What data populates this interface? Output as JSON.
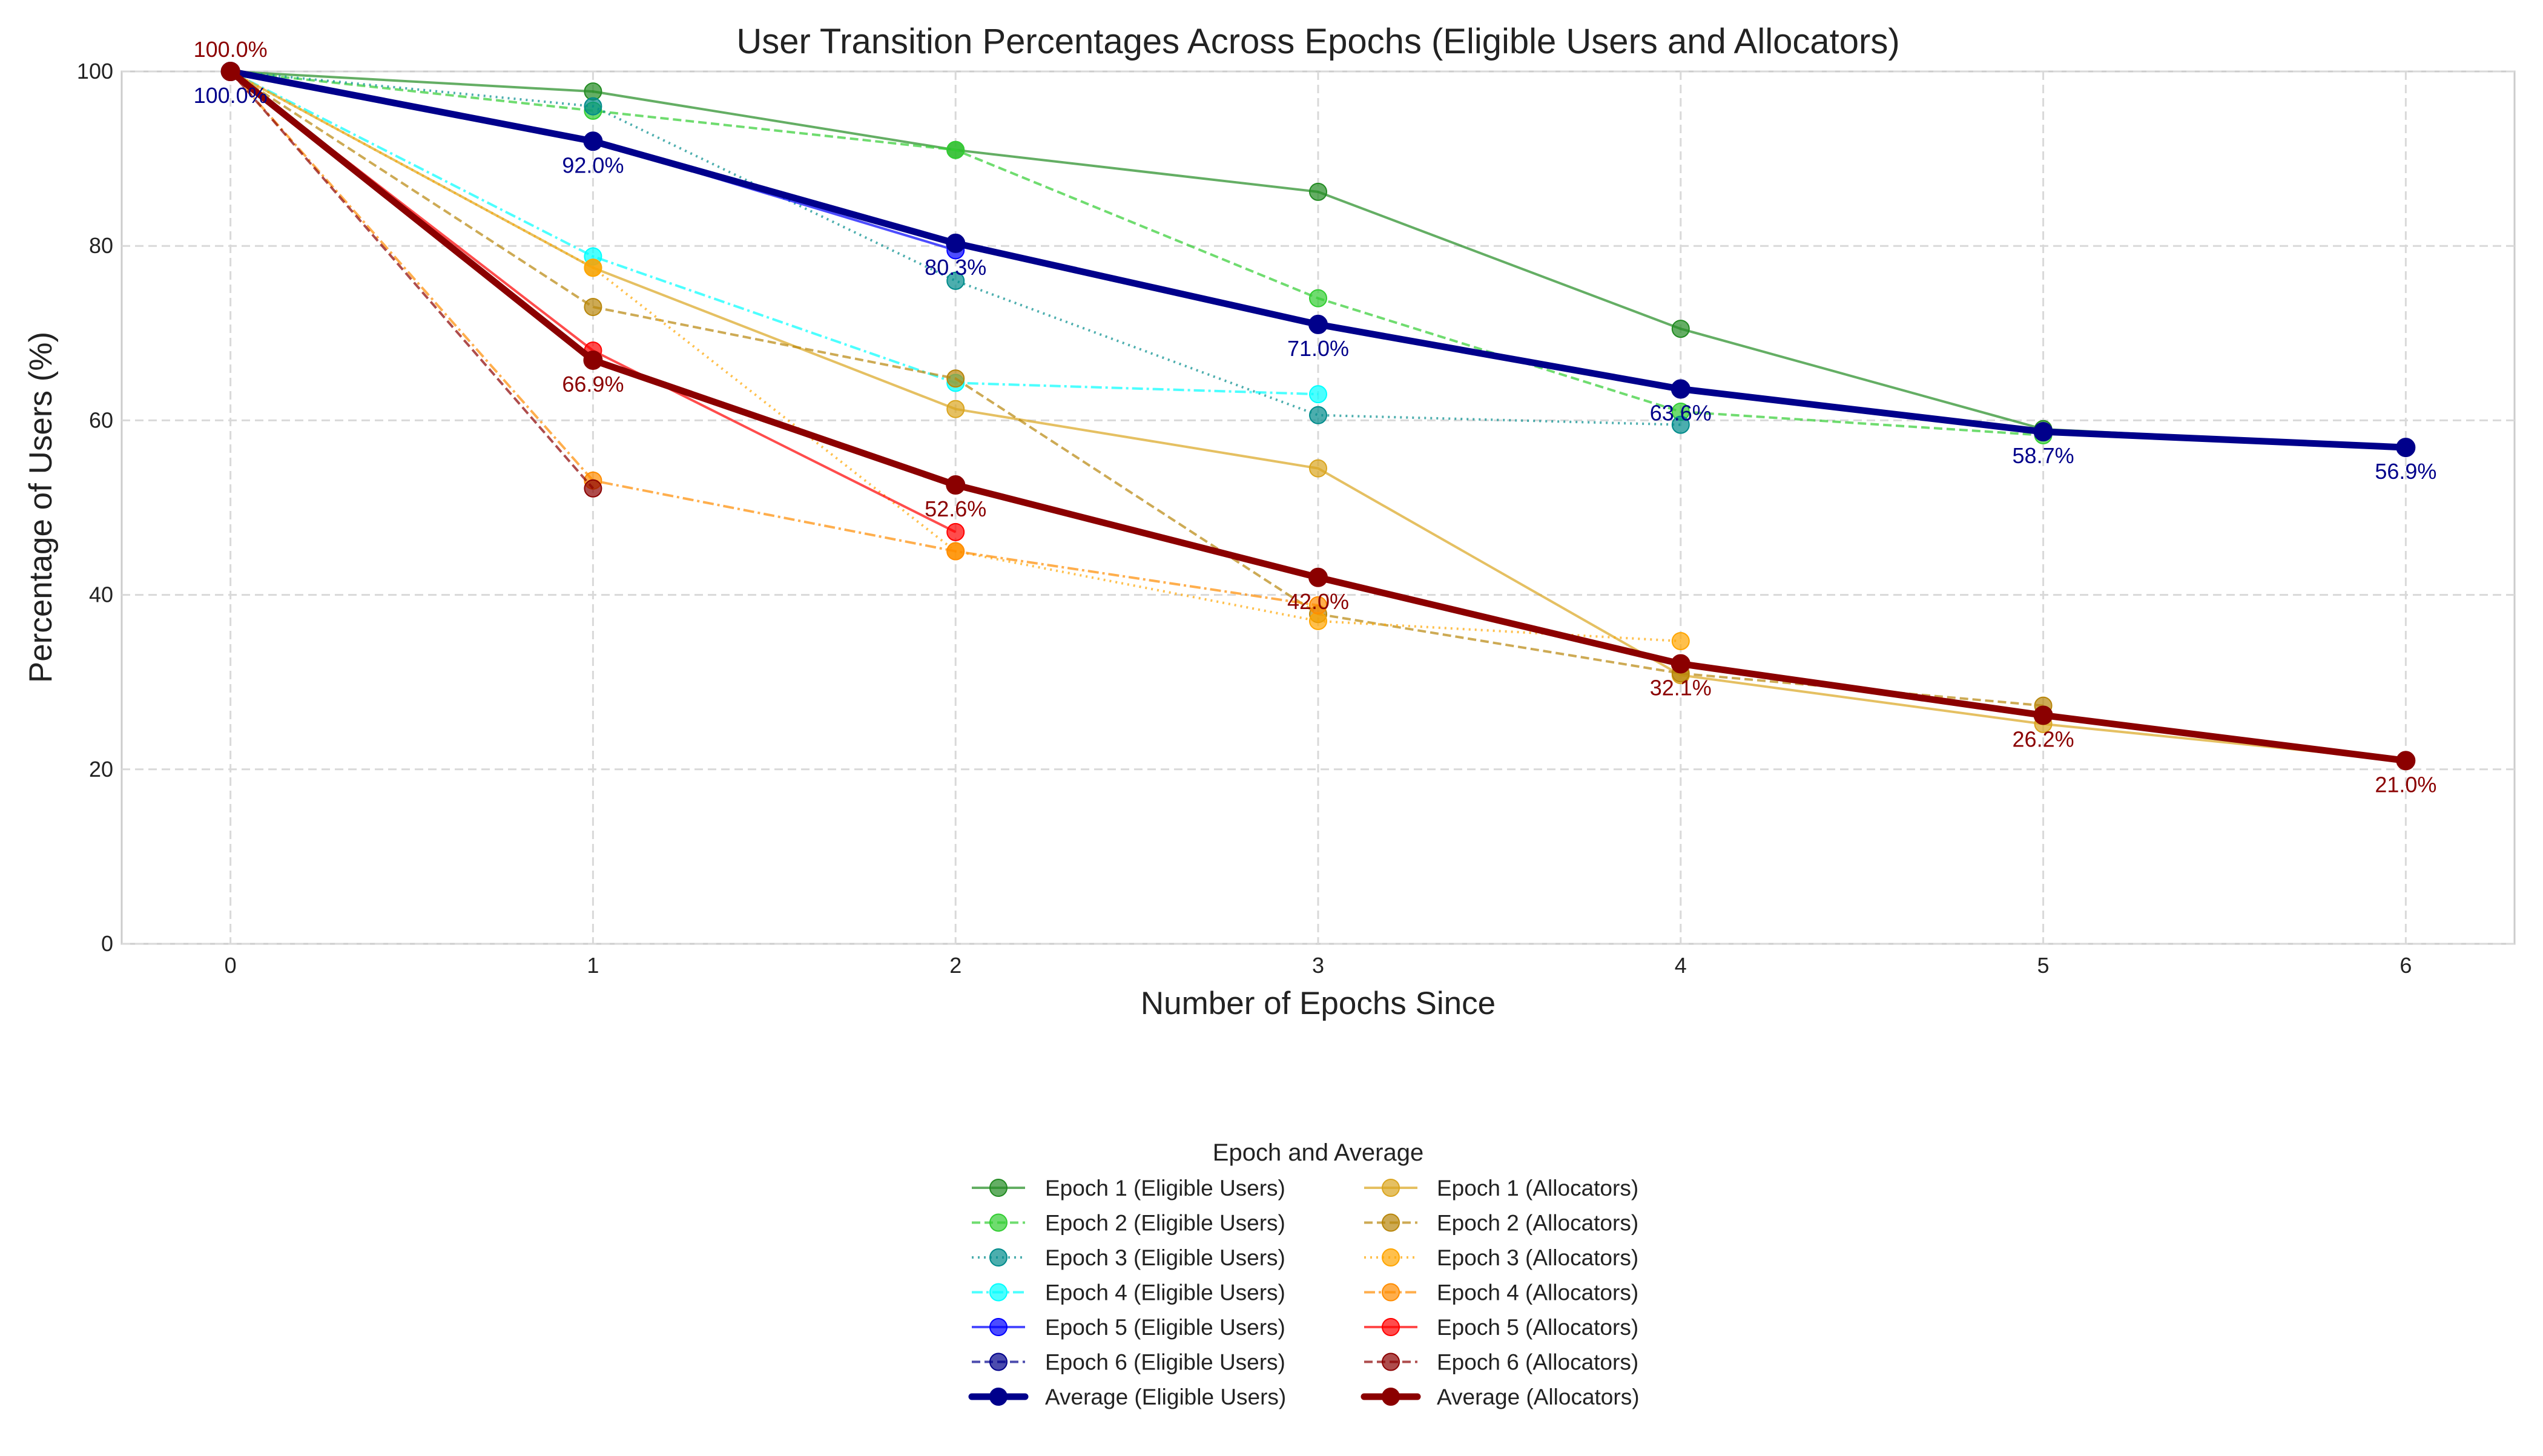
{
  "chart_data": {
    "type": "line",
    "title": "User Transition Percentages Across Epochs (Eligible Users and Allocators)",
    "xlabel": "Number of Epochs Since",
    "ylabel": "Percentage of Users (%)",
    "xlim": [
      -0.3,
      6.3
    ],
    "ylim": [
      0,
      100
    ],
    "xticks": [
      "0",
      "1",
      "2",
      "3",
      "4",
      "5",
      "6"
    ],
    "yticks": [
      "0",
      "20",
      "40",
      "60",
      "80",
      "100"
    ],
    "grid": true,
    "legend": {
      "title": "Epoch and Average",
      "placement": "bottom-center",
      "columns": 2
    },
    "series": [
      {
        "name": "Epoch 1 (Eligible Users)",
        "color": "#228B22",
        "dash": "solid",
        "x": [
          0,
          1,
          2,
          3,
          4,
          5,
          6
        ],
        "values": [
          100,
          97.7,
          91.0,
          86.2,
          70.5,
          59.0,
          56.9
        ]
      },
      {
        "name": "Epoch 2 (Eligible Users)",
        "color": "#32CD32",
        "dash": "dashed",
        "x": [
          0,
          1,
          2,
          3,
          4,
          5
        ],
        "values": [
          100,
          95.5,
          91.0,
          74.0,
          61.0,
          58.3
        ]
      },
      {
        "name": "Epoch 3 (Eligible Users)",
        "color": "#008B8B",
        "dash": "dotted",
        "x": [
          0,
          1,
          2,
          3,
          4
        ],
        "values": [
          100,
          96.0,
          76.0,
          60.6,
          59.5
        ]
      },
      {
        "name": "Epoch 4 (Eligible Users)",
        "color": "#00FFFF",
        "dash": "dashdot",
        "x": [
          0,
          1,
          2,
          3
        ],
        "values": [
          100,
          78.8,
          64.3,
          63.0
        ]
      },
      {
        "name": "Epoch 5 (Eligible Users)",
        "color": "#0000FF",
        "dash": "solid",
        "x": [
          0,
          1,
          2
        ],
        "values": [
          100,
          92.0,
          79.5
        ]
      },
      {
        "name": "Epoch 6 (Eligible Users)",
        "color": "#00008B",
        "dash": "dashed",
        "x": [
          0,
          1
        ],
        "values": [
          100,
          92.0
        ]
      },
      {
        "name": "Average (Eligible Users)",
        "color": "#00008B",
        "dash": "solid",
        "average": true,
        "x": [
          0,
          1,
          2,
          3,
          4,
          5,
          6
        ],
        "values": [
          100,
          92.0,
          80.3,
          71.0,
          63.6,
          58.7,
          56.9
        ],
        "labels": [
          "100.0%",
          "92.0%",
          "80.3%",
          "71.0%",
          "63.6%",
          "58.7%",
          "56.9%"
        ]
      },
      {
        "name": "Epoch 1 (Allocators)",
        "color": "#DAA520",
        "dash": "solid",
        "x": [
          0,
          1,
          2,
          3,
          4,
          5,
          6
        ],
        "values": [
          100,
          77.5,
          61.3,
          54.5,
          30.8,
          25.2,
          21.0
        ]
      },
      {
        "name": "Epoch 2 (Allocators)",
        "color": "#B8860B",
        "dash": "dashed",
        "x": [
          0,
          1,
          2,
          3,
          4,
          5
        ],
        "values": [
          100,
          73.0,
          64.8,
          37.8,
          31.0,
          27.3
        ]
      },
      {
        "name": "Epoch 3 (Allocators)",
        "color": "#FFA500",
        "dash": "dotted",
        "x": [
          0,
          1,
          2,
          3,
          4
        ],
        "values": [
          100,
          77.5,
          45.0,
          37.0,
          34.7
        ]
      },
      {
        "name": "Epoch 4 (Allocators)",
        "color": "#FF8C00",
        "dash": "dashdot",
        "x": [
          0,
          1,
          2,
          3
        ],
        "values": [
          100,
          53.1,
          45.0,
          38.8
        ]
      },
      {
        "name": "Epoch 5 (Allocators)",
        "color": "#FF0000",
        "dash": "solid",
        "x": [
          0,
          1,
          2
        ],
        "values": [
          100,
          68.0,
          47.2
        ]
      },
      {
        "name": "Epoch 6 (Allocators)",
        "color": "#8B0000",
        "dash": "dashed",
        "x": [
          0,
          1
        ],
        "values": [
          100,
          52.2
        ]
      },
      {
        "name": "Average (Allocators)",
        "color": "#8B0000",
        "dash": "solid",
        "average": true,
        "x": [
          0,
          1,
          2,
          3,
          4,
          5,
          6
        ],
        "values": [
          100,
          66.9,
          52.6,
          42.0,
          32.1,
          26.2,
          21.0
        ],
        "labels": [
          "100.0%",
          "66.9%",
          "52.6%",
          "42.0%",
          "32.1%",
          "26.2%",
          "21.0%"
        ]
      }
    ]
  }
}
